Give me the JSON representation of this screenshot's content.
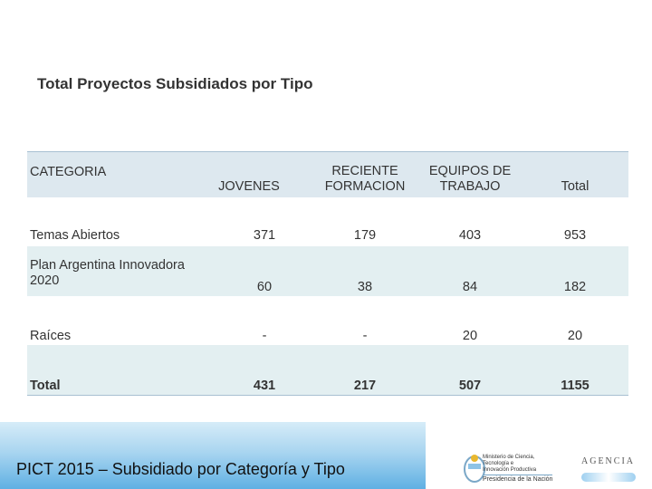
{
  "header": {
    "title": "Total Proyectos Subsidiados por Tipo"
  },
  "table": {
    "columns": [
      "CATEGORIA",
      "JOVENES",
      "RECIENTE FORMACION",
      "EQUIPOS DE TRABAJO",
      "Total"
    ],
    "rows": [
      [
        "Temas Abiertos",
        371,
        179,
        403,
        953
      ],
      [
        "Plan Argentina Innovadora 2020",
        60,
        38,
        84,
        182
      ],
      [
        "Raíces",
        "-",
        "-",
        20,
        20
      ],
      [
        "Total",
        431,
        217,
        507,
        1155
      ]
    ]
  },
  "footer": {
    "title": "PICT 2015 – Subsidiado por Categoría y Tipo",
    "ministry": "Ministerio de Ciencia, Tecnología e Innovación Productiva",
    "presidency": "Presidencia de la Nación",
    "agency": "AGENCIA"
  }
}
